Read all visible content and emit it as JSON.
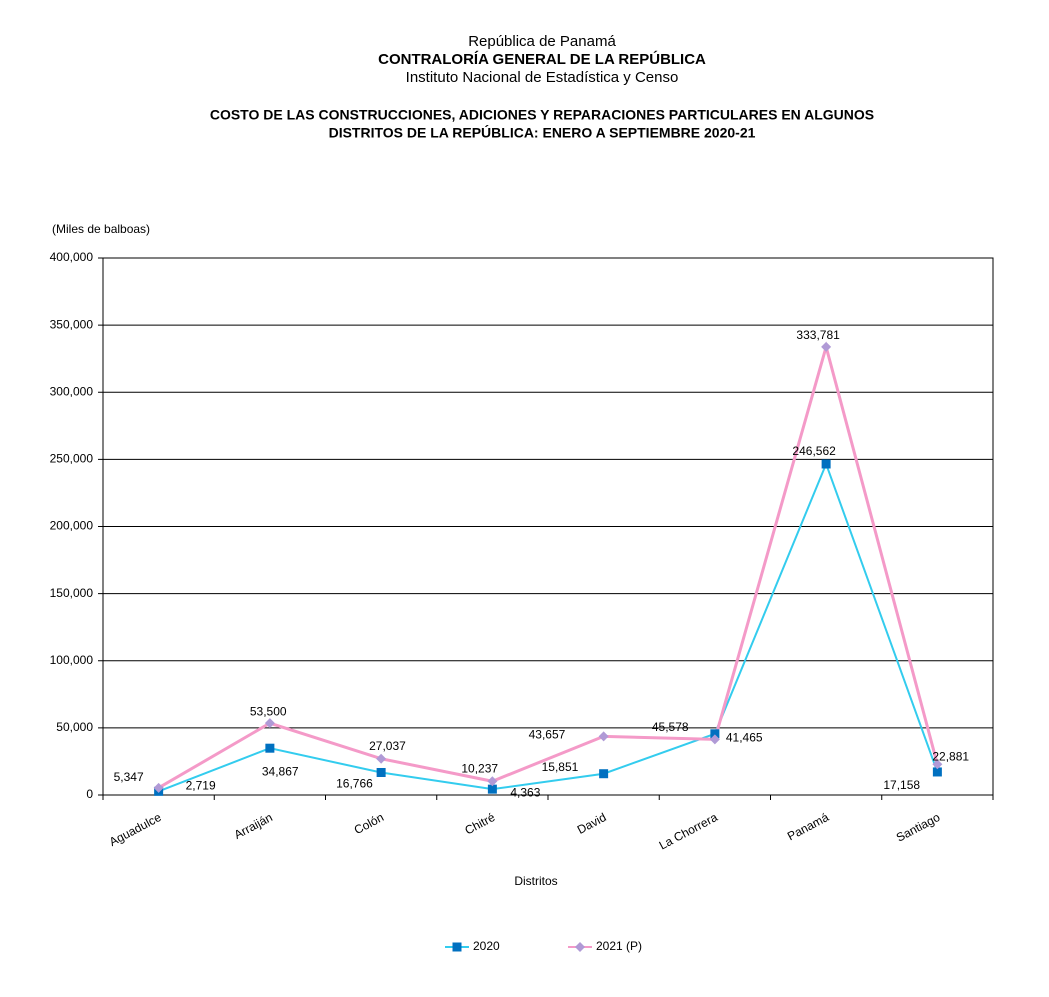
{
  "header": {
    "line1": "República de Panamá",
    "line2": "CONTRALORÍA GENERAL DE LA REPÚBLICA",
    "line3": "Instituto  Nacional de Estadística y Censo"
  },
  "chart_data": {
    "type": "line",
    "title": [
      "COSTO DE LAS CONSTRUCCIONES, ADICIONES Y REPARACIONES PARTICULARES EN ALGUNOS",
      "DISTRITOS DE LA REPÚBLICA: ENERO A SEPTIEMBRE 2020-21"
    ],
    "y_label": "(Miles de balboas)",
    "x_label": "Distritos",
    "categories": [
      "Aguadulce",
      "Arraiján",
      "Colón",
      "Chitré",
      "David",
      "La Chorrera",
      "Panamá",
      "Santiago"
    ],
    "series": [
      {
        "name": "2020",
        "color": "#33ccee",
        "marker_color": "#0070c0",
        "marker": "square",
        "values": [
          2719,
          34867,
          16766,
          4363,
          15851,
          45578,
          246562,
          17158
        ],
        "value_labels": [
          "2,719",
          "34,867",
          "16,766",
          "4,363",
          "15,851",
          "45,578",
          "246,562",
          "17,158"
        ]
      },
      {
        "name": "2021 (P)",
        "color": "#f49ac8",
        "marker_color": "#b09ad6",
        "marker": "diamond",
        "values": [
          5347,
          53500,
          27037,
          10237,
          43657,
          41465,
          333781,
          22881
        ],
        "value_labels": [
          "5,347",
          "53,500",
          "27,037",
          "10,237",
          "43,657",
          "41,465",
          "333,781",
          "22,881"
        ]
      }
    ],
    "ylim": [
      0,
      400000
    ],
    "yticks": [
      0,
      {
        "value": 50000,
        "label": "50,000"
      },
      {
        "value": 100000,
        "label": "100,000"
      },
      {
        "value": 150000,
        "label": "150,000"
      },
      {
        "value": 200000,
        "label": "200,000"
      },
      {
        "value": 250000,
        "label": "250,000"
      },
      {
        "value": 300000,
        "label": "300,000"
      },
      {
        "value": 350000,
        "label": "350,000"
      },
      {
        "value": 400000,
        "label": "400,000"
      }
    ],
    "grid": true,
    "legend": "bottom"
  }
}
